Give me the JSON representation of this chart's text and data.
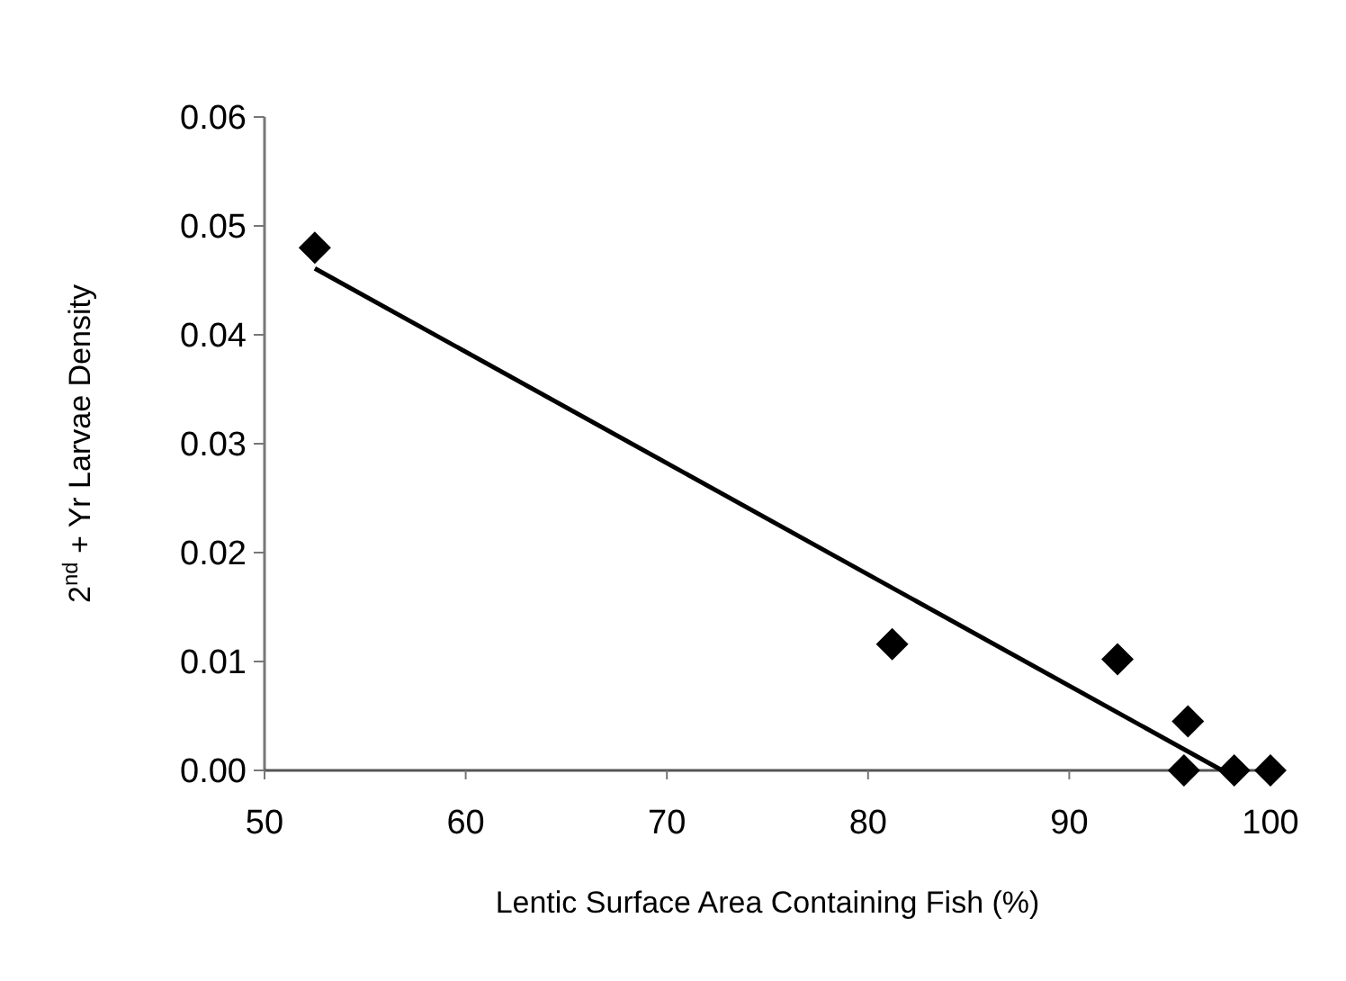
{
  "chart_data": {
    "type": "scatter",
    "xlabel": "Lentic Surface Area Containing Fish (%)",
    "ylabel": "2$^{nd}$ + Yr Larvae Density",
    "xlim": [
      50,
      100
    ],
    "ylim": [
      0,
      0.06
    ],
    "xticks": [
      50,
      60,
      70,
      80,
      90,
      100
    ],
    "yticks": [
      {
        "value": 0,
        "label": "0.00"
      },
      {
        "value": 0.01,
        "label": "0.01"
      },
      {
        "value": 0.02,
        "label": "0.02"
      },
      {
        "value": 0.03,
        "label": "0.03"
      },
      {
        "value": 0.04,
        "label": "0.04"
      },
      {
        "value": 0.05,
        "label": "0.05"
      },
      {
        "value": 0.06,
        "label": "0.06"
      }
    ],
    "grid": false,
    "marker": "diamond",
    "series": [
      {
        "color": "#000000",
        "x": [
          52.5,
          81.2,
          92.4,
          95.9,
          95.7,
          98.2,
          100
        ],
        "values": [
          0.048,
          0.0116,
          0.0102,
          0.0045,
          0,
          0,
          0
        ]
      },
      {
        "type": "line",
        "color": "#000000",
        "marker": "none",
        "line_style": "solid",
        "x": [
          52.5,
          97.6
        ],
        "values": [
          0.0461,
          0
        ]
      }
    ]
  }
}
